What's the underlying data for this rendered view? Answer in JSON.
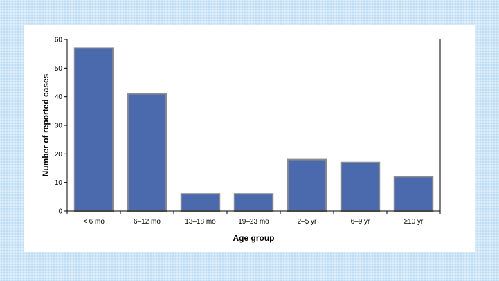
{
  "chart_data": {
    "type": "bar",
    "title": "",
    "xlabel": "Age group",
    "ylabel": "Number of reported cases",
    "categories": [
      "< 6 mo",
      "6–12 mo",
      "13–18 mo",
      "19–23 mo",
      "2–5 yr",
      "6–9 yr",
      "≥10 yr"
    ],
    "values": [
      57,
      41,
      6,
      6,
      18,
      17,
      12
    ],
    "ylim": [
      0,
      60
    ],
    "yticks": [
      0,
      10,
      20,
      30,
      40,
      50,
      60
    ],
    "grid": false,
    "legend": "none",
    "bar_color": "#4a6aad",
    "bar_border": "#8c8c8c"
  }
}
